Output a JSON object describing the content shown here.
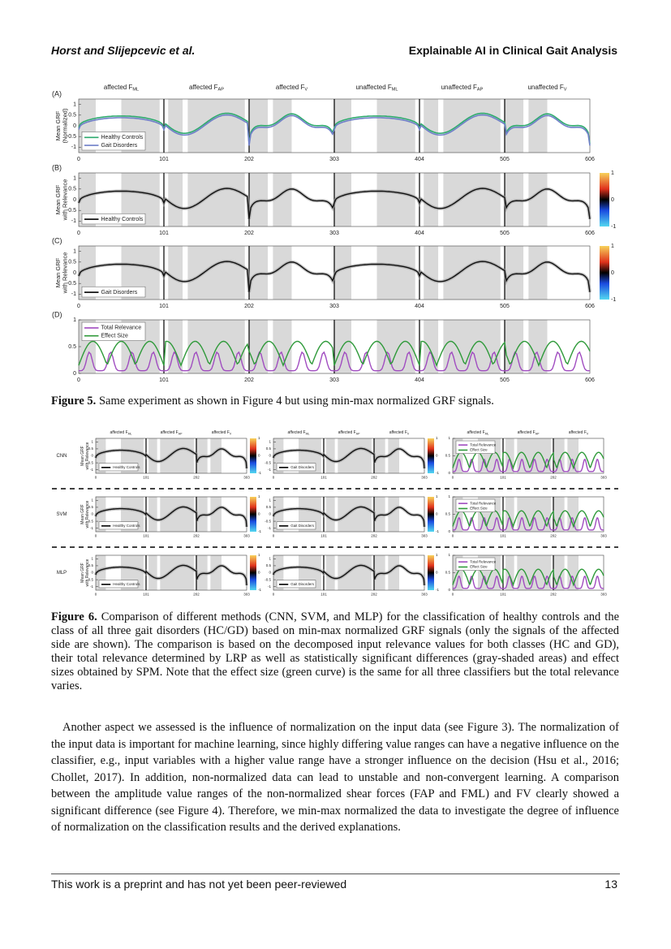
{
  "header": {
    "left": "Horst and Slijepcevic et al.",
    "right": "Explainable AI in Clinical Gait Analysis"
  },
  "figure5": {
    "columns": [
      {
        "text": "affected F",
        "sub": "ML"
      },
      {
        "text": "affected F",
        "sub": "AP"
      },
      {
        "text": "affected F",
        "sub": "V"
      },
      {
        "text": "unaffected F",
        "sub": "ML"
      },
      {
        "text": "unaffected F",
        "sub": "AP"
      },
      {
        "text": "unaffected F",
        "sub": "V"
      }
    ],
    "xlim": [
      0,
      606
    ],
    "xticks": [
      0,
      101,
      202,
      303,
      404,
      505,
      606
    ],
    "colorbar_ticks": [
      1,
      0,
      -1
    ],
    "panels": [
      {
        "label": "(A)",
        "ylabel": [
          "Mean GRF",
          "(Normalized)"
        ],
        "ylim": [
          -1.25,
          1.25
        ],
        "yticks": [
          1,
          0.5,
          0,
          -0.5,
          -1
        ],
        "legend": [
          {
            "name": "Healthy Controls",
            "color": "#2eaa6e"
          },
          {
            "name": "Gait Disorders",
            "color": "#6f7fc8"
          }
        ]
      },
      {
        "label": "(B)",
        "ylabel": [
          "Mean GRF",
          "with Relevance"
        ],
        "ylim": [
          -1.25,
          1.25
        ],
        "yticks": [
          1,
          0.5,
          0,
          -0.5,
          -1
        ],
        "legend": [
          {
            "name": "Healthy Controls",
            "color": "#000000"
          }
        ]
      },
      {
        "label": "(C)",
        "ylabel": [
          "Mean GRF",
          "with Relevance"
        ],
        "ylim": [
          -1.25,
          1.25
        ],
        "yticks": [
          1,
          0.5,
          0,
          -0.5,
          -1
        ],
        "legend": [
          {
            "name": "Gait Disorders",
            "color": "#000000"
          }
        ]
      },
      {
        "label": "(D)",
        "ylabel": [],
        "ylim": [
          0,
          1
        ],
        "yticks": [
          1,
          0.5,
          0
        ],
        "legend": [
          {
            "name": "Total Relevance",
            "color": "#a04cc0"
          },
          {
            "name": "Effect Size",
            "color": "#2f9a3a"
          }
        ]
      }
    ],
    "caption": {
      "label": "Figure 5.",
      "text": "Same experiment as shown in Figure 4 but using min-max normalized GRF signals."
    }
  },
  "figure6": {
    "rows": [
      "CNN",
      "SVM",
      "MLP"
    ],
    "columns": [
      {
        "text": "affected F",
        "sub": "ML"
      },
      {
        "text": "affected F",
        "sub": "AP"
      },
      {
        "text": "affected F",
        "sub": "V"
      }
    ],
    "xlim": [
      0,
      303
    ],
    "xticks": [
      0,
      101,
      202,
      303
    ],
    "ylim": [
      -1.25,
      1.25
    ],
    "yticks": [
      1,
      0.5,
      0,
      -0.5,
      -1
    ],
    "ylim_relevance": [
      0,
      1
    ],
    "yticks_relevance": [
      1,
      0.5,
      0
    ],
    "ylabel": [
      "Mean GRF",
      "with Relevance"
    ],
    "legends": [
      "Healthy Controls",
      "Gait Disorders",
      "Total Relevance",
      "Effect Size"
    ],
    "colorbar_ticks": [
      1,
      0,
      -1
    ],
    "caption": {
      "label": "Figure 6.",
      "text": "Comparison of different methods (CNN, SVM, and MLP) for the classification of healthy controls and the class of all three gait disorders (HC/GD) based on min-max normalized GRF signals (only the signals of the affected side are shown). The comparison is based on the decomposed input relevance values for both classes (HC and GD), their total relevance determined by LRP as well as statistically significant differences (gray-shaded areas) and effect sizes obtained by SPM. Note that the effect size (green curve) is the same for all three classifiers but the total relevance varies."
    }
  },
  "paragraph": "Another aspect we assessed is the influence of normalization on the input data (see Figure 3). The normalization of the input data is important for machine learning, since highly differing value ranges can have a negative influence on the classifier, e.g., input variables with a higher value range have a stronger influence on the decision (Hsu et al., 2016; Chollet, 2017). In addition, non-normalized data can lead to unstable and non-convergent learning. A comparison between the amplitude value ranges of the non-normalized shear forces (FAP and FML) and FV clearly showed a significant difference (see Figure 4). Therefore, we min-max normalized the data to investigate the degree of influence of normalization on the classification results and the derived explanations.",
  "footer": {
    "left": "This work is a preprint and has not yet been peer-reviewed",
    "page": "13"
  }
}
